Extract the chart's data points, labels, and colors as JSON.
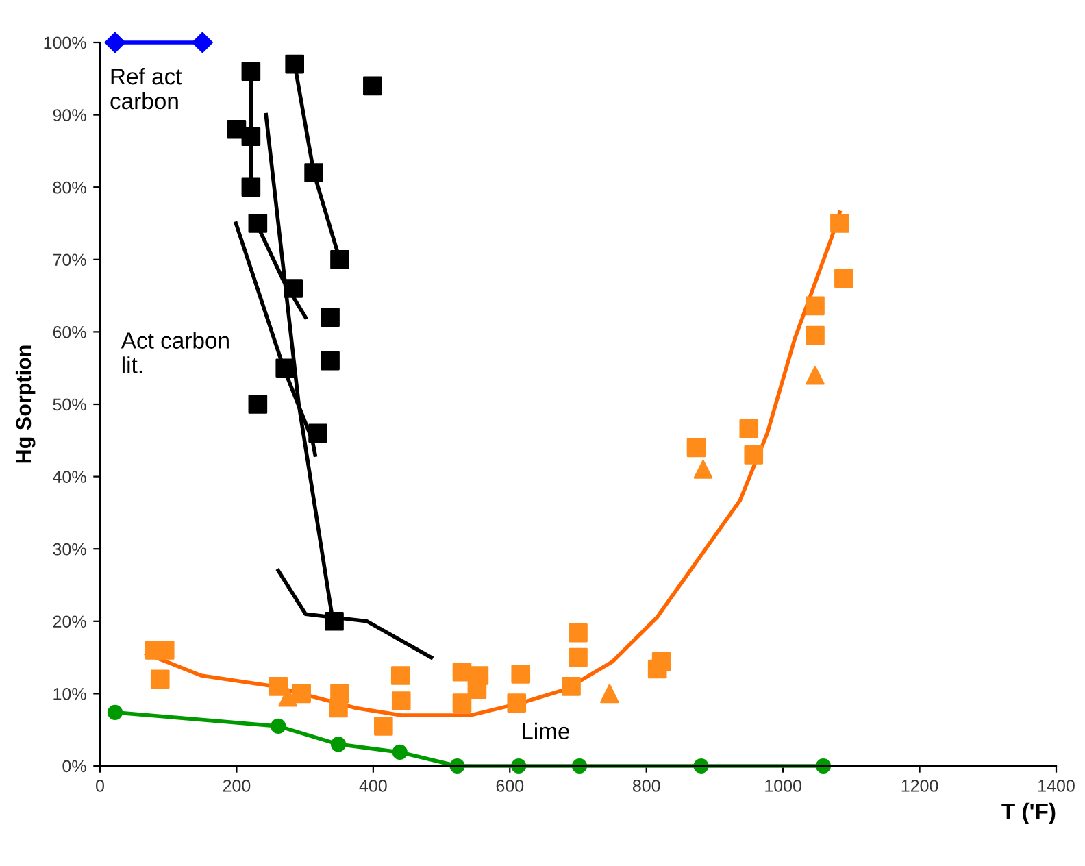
{
  "chart_data": {
    "type": "scatter",
    "xlabel": "T ('F)",
    "ylabel": "Hg Sorption",
    "xlim": [
      0,
      1400
    ],
    "ylim": [
      0,
      100
    ],
    "xticks": [
      0,
      200,
      400,
      600,
      800,
      1000,
      1200,
      1400
    ],
    "yticks": [
      {
        "value": 0,
        "label": "0%"
      },
      {
        "value": 10,
        "label": "10%"
      },
      {
        "value": 20,
        "label": "20%"
      },
      {
        "value": 30,
        "label": "30%"
      },
      {
        "value": 40,
        "label": "40%"
      },
      {
        "value": 50,
        "label": "50%"
      },
      {
        "value": 60,
        "label": "60%"
      },
      {
        "value": 70,
        "label": "70%"
      },
      {
        "value": 80,
        "label": "80%"
      },
      {
        "value": 90,
        "label": "90%"
      },
      {
        "value": 100,
        "label": "100%"
      }
    ],
    "grid": false,
    "legend": false,
    "series": [
      {
        "type": "line",
        "color": "#0000ff",
        "marker": "diamond",
        "x": [
          22,
          150
        ],
        "values": [
          100,
          100
        ]
      },
      {
        "color": "#000000",
        "marker": "square",
        "x": [
          221,
          200,
          221,
          221,
          231,
          285,
          313,
          351,
          283,
          271,
          337,
          337,
          231,
          319,
          343,
          399
        ],
        "values": [
          96,
          88,
          87,
          80,
          75,
          97,
          82,
          70,
          66,
          55,
          62,
          56,
          50,
          46,
          20,
          94
        ]
      },
      {
        "type": "line",
        "color": "#000000",
        "marker": "none",
        "x": [
          221,
          221
        ],
        "values": [
          96,
          80
        ]
      },
      {
        "type": "line",
        "color": "#000000",
        "marker": "none",
        "x": [
          285,
          313,
          351
        ],
        "values": [
          97,
          82,
          70
        ]
      },
      {
        "type": "line",
        "color": "#000000",
        "marker": "none",
        "x": [
          243,
          291,
          341
        ],
        "values": [
          90,
          50,
          20
        ]
      },
      {
        "type": "line",
        "color": "#000000",
        "marker": "none",
        "x": [
          229,
          269,
          301
        ],
        "values": [
          75,
          67,
          62
        ]
      },
      {
        "type": "line",
        "color": "#000000",
        "marker": "none",
        "x": [
          199,
          269,
          311,
          315
        ],
        "values": [
          75,
          55,
          45,
          43
        ]
      },
      {
        "type": "line",
        "color": "#000000",
        "marker": "none",
        "x": [
          261,
          301,
          391,
          485
        ],
        "values": [
          27,
          21,
          20,
          15
        ]
      },
      {
        "type": "line",
        "color": "#ff6600",
        "marker": "none",
        "x": [
          68,
          148,
          255,
          375,
          441,
          542,
          616,
          682,
          750,
          816,
          883,
          937,
          977,
          1017,
          1071,
          1083
        ],
        "values": [
          15.5,
          12.5,
          11,
          8,
          7,
          7,
          8.7,
          10.6,
          14.4,
          20.6,
          29.5,
          36.7,
          46,
          59,
          73,
          76.5
        ]
      },
      {
        "color": "#ff8c1a",
        "marker": "square",
        "x": [
          80,
          95,
          88,
          261,
          295,
          351,
          349,
          415,
          440,
          441,
          530,
          530,
          555,
          552,
          616,
          610,
          700,
          700,
          690,
          816,
          822,
          873,
          950,
          957,
          1083,
          1089,
          1047,
          1047
        ],
        "values": [
          16,
          16,
          12,
          11,
          10,
          10,
          8,
          5.5,
          12.5,
          9,
          13,
          8.7,
          12.5,
          10.6,
          12.7,
          8.7,
          18.4,
          15,
          11,
          13.4,
          14.4,
          44,
          46.6,
          43,
          75,
          67.4,
          63.6,
          59.5
        ]
      },
      {
        "color": "#ff8c1a",
        "marker": "triangle",
        "x": [
          275,
          746,
          883,
          1047
        ],
        "values": [
          9.5,
          10,
          41,
          54
        ]
      },
      {
        "type": "line",
        "color": "#009900",
        "marker": "circle",
        "x": [
          22,
          261,
          349,
          439,
          523,
          613,
          702,
          880,
          1059
        ],
        "values": [
          7.4,
          5.5,
          3,
          1.9,
          0,
          0,
          0,
          0,
          0
        ]
      }
    ],
    "annotations": [
      "Ref act\ncarbon",
      "Act carbon\nlit.",
      "Lime"
    ]
  }
}
